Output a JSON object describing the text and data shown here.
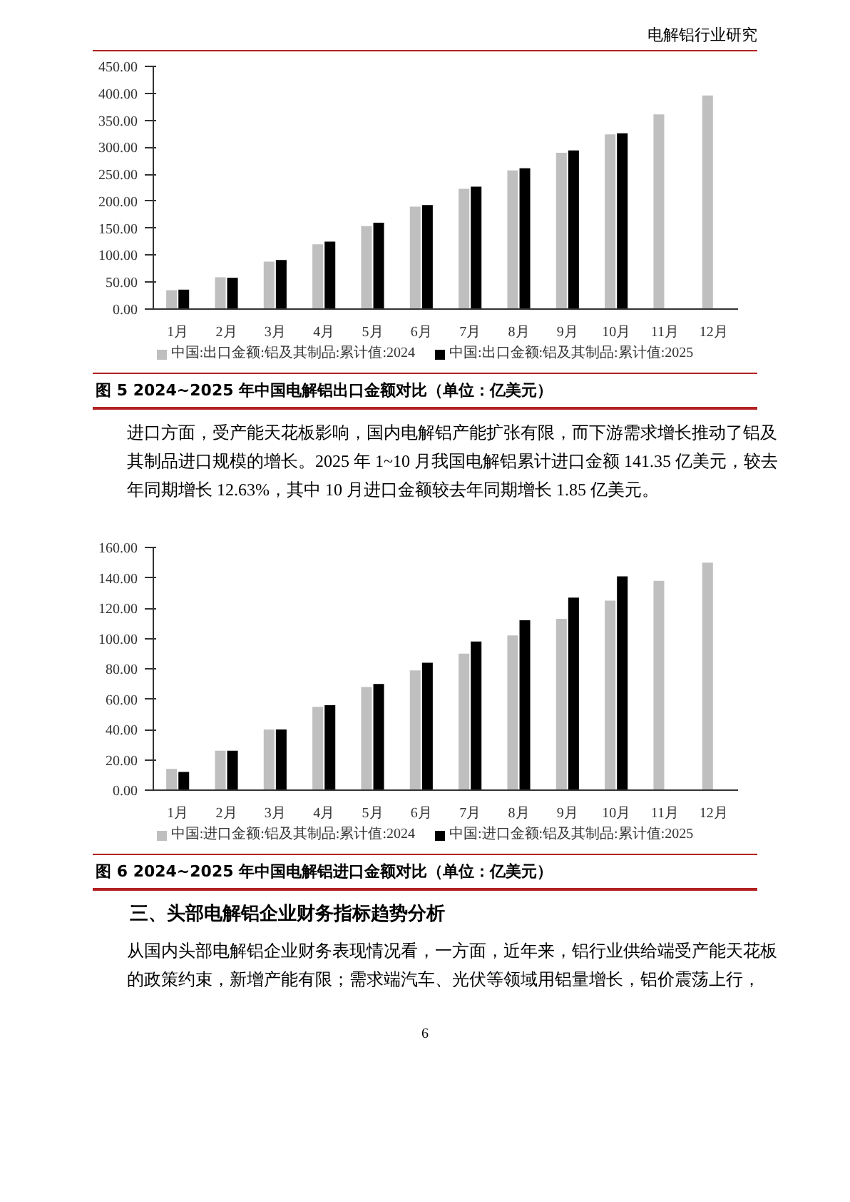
{
  "chart_data": [
    {
      "type": "bar",
      "title": "图 5 2024~2025 年中国电解铝出口金额对比（单位：亿美元）",
      "categories": [
        "1月",
        "2月",
        "3月",
        "4月",
        "5月",
        "6月",
        "7月",
        "8月",
        "9月",
        "10月",
        "11月",
        "12月"
      ],
      "series": [
        {
          "name": "中国:出口金额:铝及其制品:累计值:2024",
          "color": "#bfbfbf",
          "values": [
            35,
            59,
            88,
            120,
            154,
            190,
            223,
            257,
            290,
            324,
            361,
            396
          ]
        },
        {
          "name": "中国:出口金额:铝及其制品:累计值:2025",
          "color": "#000000",
          "values": [
            36,
            58,
            91,
            125,
            160,
            193,
            227,
            261,
            294,
            326,
            null,
            null
          ]
        }
      ],
      "ylim": [
        0,
        450
      ],
      "yticks": [
        {
          "value": 0,
          "label": "0.00"
        },
        {
          "value": 50,
          "label": "50.00"
        },
        {
          "value": 100,
          "label": "100.00"
        },
        {
          "value": 150,
          "label": "150.00"
        },
        {
          "value": 200,
          "label": "200.00"
        },
        {
          "value": 250,
          "label": "250.00"
        },
        {
          "value": 300,
          "label": "300.00"
        },
        {
          "value": 350,
          "label": "350.00"
        },
        {
          "value": 400,
          "label": "400.00"
        },
        {
          "value": 450,
          "label": "450.00"
        }
      ],
      "legend": "bottom",
      "annotations": [
        "电解铝行业研究",
        "进口方面，受产能天花板影响，国内电解铝产能扩张有限，而下游需求增长推动了铝及其制品进口规模的增长。2025 年 1~10 月我国电解铝累计进口金额 141.35 亿美元，较去年同期增长 12.63%，其中 10 月进口金额较去年同期增长 1.85 亿美元。"
      ]
    },
    {
      "type": "bar",
      "title": "图 6 2024~2025 年中国电解铝进口金额对比（单位：亿美元）",
      "categories": [
        "1月",
        "2月",
        "3月",
        "4月",
        "5月",
        "6月",
        "7月",
        "8月",
        "9月",
        "10月",
        "11月",
        "12月"
      ],
      "series": [
        {
          "name": "中国:进口金额:铝及其制品:累计值:2024",
          "color": "#bfbfbf",
          "values": [
            14,
            26,
            40,
            55,
            68,
            79,
            90,
            102,
            113,
            125,
            138,
            150
          ]
        },
        {
          "name": "中国:进口金额:铝及其制品:累计值:2025",
          "color": "#000000",
          "values": [
            12,
            26,
            40,
            56,
            70,
            84,
            98,
            112,
            127,
            141,
            null,
            null
          ]
        }
      ],
      "ylim": [
        0,
        160
      ],
      "yticks": [
        {
          "value": 0,
          "label": "0.00"
        },
        {
          "value": 20,
          "label": "20.00"
        },
        {
          "value": 40,
          "label": "40.00"
        },
        {
          "value": 60,
          "label": "60.00"
        },
        {
          "value": 80,
          "label": "80.00"
        },
        {
          "value": 100,
          "label": "100.00"
        },
        {
          "value": 120,
          "label": "120.00"
        },
        {
          "value": 140,
          "label": "140.00"
        },
        {
          "value": 160,
          "label": "160.00"
        }
      ],
      "legend": "bottom",
      "annotations": [
        "三、头部电解铝企业财务指标趋势分析",
        "从国内头部电解铝企业财务表现情况看，一方面，近年来，铝行业供给端受产能天花板的政策约束，新增产能有限；需求端汽车、光伏等领域用铝量增长，铝价震荡上行，",
        "6"
      ]
    }
  ]
}
